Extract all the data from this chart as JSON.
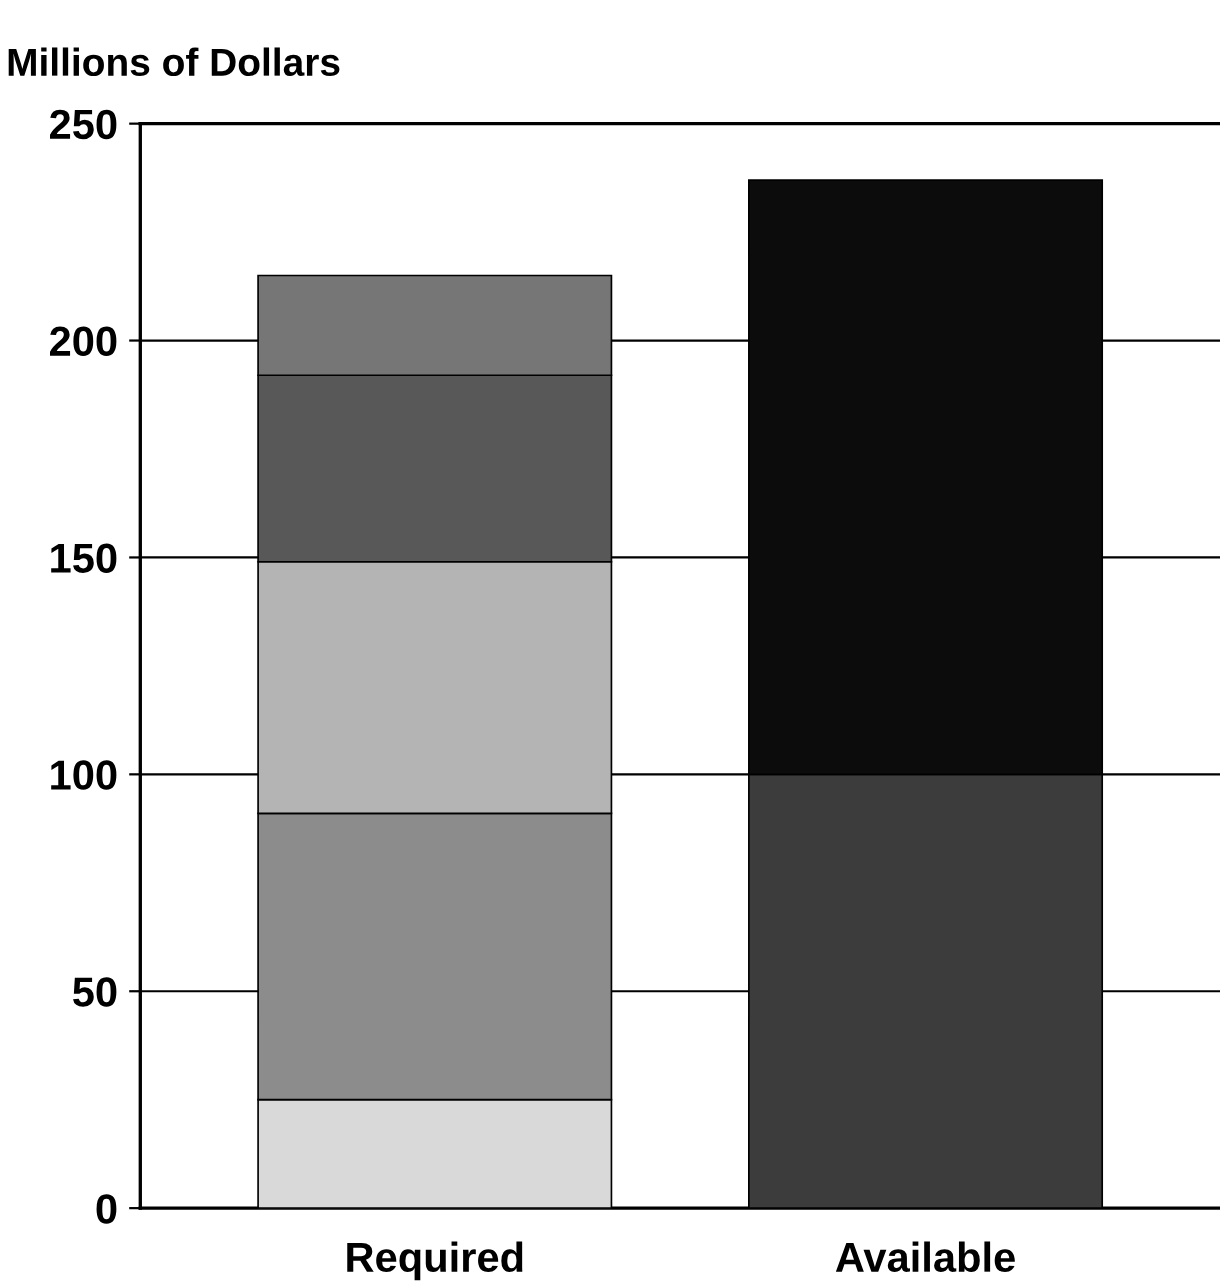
{
  "chart_data": {
    "type": "bar",
    "stacked": true,
    "ylabel": "Millions of Dollars",
    "categories": [
      "Required",
      "Available"
    ],
    "series": [
      {
        "colors": [
          "#d9d9d9",
          "#3c3c3c"
        ],
        "values": [
          25,
          100
        ]
      },
      {
        "colors": [
          "#8c8c8c",
          "#0c0c0c"
        ],
        "values": [
          66,
          137
        ]
      },
      {
        "colors": [
          "#b4b4b4",
          null
        ],
        "values": [
          58,
          null
        ]
      },
      {
        "colors": [
          "#585858",
          null
        ],
        "values": [
          43,
          null
        ]
      },
      {
        "colors": [
          "#767676",
          null
        ],
        "values": [
          23,
          null
        ]
      }
    ],
    "ylim": [
      0,
      250
    ],
    "yticks": [
      0,
      50,
      100,
      150,
      200,
      250
    ],
    "grid": "y",
    "legend": false
  }
}
